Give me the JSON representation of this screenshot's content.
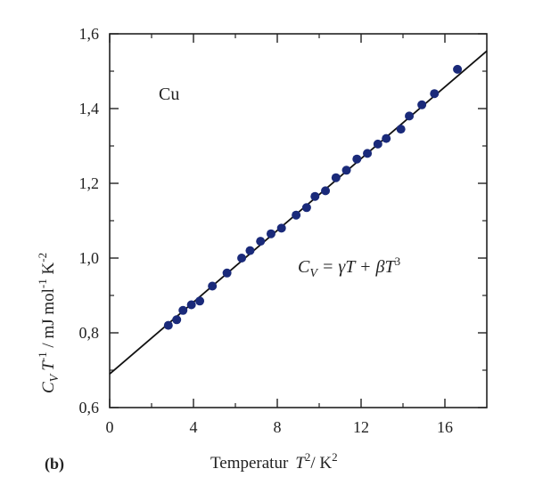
{
  "chart_data": {
    "type": "scatter",
    "title": "",
    "panel_label": "(b)",
    "annotation_element": "Cu",
    "equation": {
      "lhs_main": "C",
      "lhs_sub": "V",
      "rhs": " = γT + βT",
      "rhs_sup": "3"
    },
    "xlabel": {
      "prefix": "Temperatur",
      "main": "T",
      "sup": "2",
      "suffix": "/ K",
      "suffix_sup": "2"
    },
    "ylabel": {
      "main": "C",
      "sub": "V",
      "var": "T",
      "sup1": "-1",
      "units": " / mJ mol",
      "sup2": "-1",
      "units2": " K",
      "sup3": "-2"
    },
    "xlim": [
      0,
      18
    ],
    "ylim": [
      0.6,
      1.6
    ],
    "xticks": [
      0,
      4,
      8,
      12,
      16
    ],
    "xtick_labels": [
      "0",
      "4",
      "8",
      "12",
      "16"
    ],
    "yticks": [
      0.6,
      0.8,
      1.0,
      1.2,
      1.4,
      1.6
    ],
    "ytick_labels": [
      "0,6",
      "0,8",
      "1,0",
      "1,2",
      "1,4",
      "1,6"
    ],
    "fit_line": {
      "intercept": 0.69,
      "slope": 0.048
    },
    "series": [
      {
        "x": [
          2.8,
          3.2,
          3.5,
          3.9,
          4.3,
          4.9,
          5.6,
          6.3,
          6.7,
          7.2,
          7.7,
          8.2,
          8.9,
          9.4,
          9.8,
          10.3,
          10.8,
          11.3,
          11.8,
          12.3,
          12.8,
          13.2,
          13.9,
          14.3,
          14.9,
          15.5,
          16.6
        ],
        "y": [
          0.82,
          0.835,
          0.86,
          0.875,
          0.885,
          0.925,
          0.96,
          1.0,
          1.02,
          1.045,
          1.065,
          1.08,
          1.115,
          1.135,
          1.165,
          1.18,
          1.215,
          1.235,
          1.265,
          1.28,
          1.305,
          1.32,
          1.345,
          1.38,
          1.41,
          1.44,
          1.505
        ]
      }
    ],
    "marker_color": "#1a2a7a",
    "line_color": "#111111",
    "grid": false
  }
}
